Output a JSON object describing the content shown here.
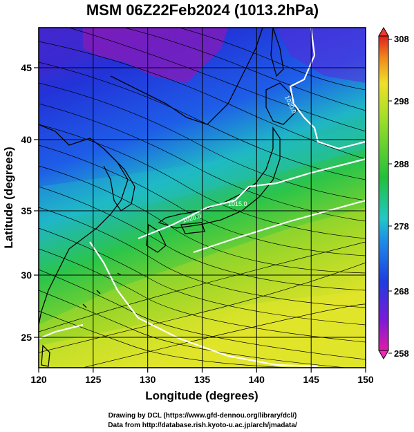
{
  "title": "MSM 06Z22Feb2024 (1013.2hPa)",
  "xlabel": "Longitude (degrees)",
  "ylabel": "Latitude  (degrees)",
  "xticks": [
    "120",
    "125",
    "130",
    "135",
    "140",
    "145",
    "150"
  ],
  "yticks": [
    "25",
    "30",
    "35",
    "40",
    "45"
  ],
  "colorbar": {
    "ticks": [
      "308",
      "298",
      "288",
      "278",
      "268",
      "258"
    ],
    "min": 258,
    "max": 308
  },
  "contour_labels": [
    "1020.0",
    "1020.0",
    "1015.0"
  ],
  "credits": {
    "line1": "Drawing by DCL (https://www.gfd-dennou.org/library/dcl/)",
    "line2": "Data from http://database.rish.kyoto-u.ac.jp/arch/jmadata/"
  },
  "map_extent": {
    "lon": [
      120,
      150
    ],
    "lat": [
      22.5,
      47.9
    ]
  },
  "colors": {
    "cold": "#7a0aa8",
    "blue": "#1f3de0",
    "cyan": "#22c7c7",
    "green": "#22c03a",
    "yellow": "#e8f02a",
    "orange": "#f08a1a",
    "red": "#e02020",
    "contour": "#ffffff"
  }
}
